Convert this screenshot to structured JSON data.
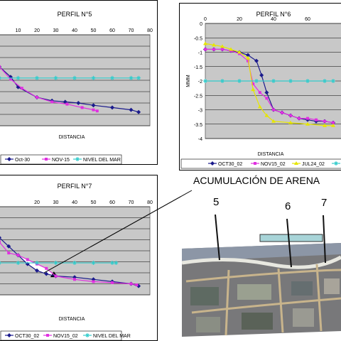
{
  "annotation": {
    "label": "ACUMULACIÓN DE ARENA"
  },
  "map": {
    "labels": [
      "5",
      "6",
      "7"
    ]
  },
  "chart_data": [
    {
      "type": "line",
      "title": "PERFIL N°5",
      "xlabel": "DISTANCIA",
      "ylabel": "",
      "xlim": [
        0,
        80
      ],
      "ylim": [
        -4,
        0
      ],
      "x_ticks": [
        "10",
        "20",
        "30",
        "40",
        "50",
        "60",
        "70",
        "80"
      ],
      "grid": true,
      "legend": "bottom",
      "series": [
        {
          "name": "Oct-30",
          "color": "#1a1a8c",
          "marker": "diamond",
          "x": [
            0,
            6,
            10,
            20,
            28,
            35,
            42,
            50,
            60,
            70,
            74
          ],
          "y": [
            -1.4,
            -1.85,
            -2.3,
            -2.75,
            -2.9,
            -2.95,
            -3.0,
            -3.1,
            -3.2,
            -3.3,
            -3.4
          ]
        },
        {
          "name": "NOV-15",
          "color": "#e030e0",
          "marker": "square",
          "x": [
            0,
            6,
            12,
            20,
            28,
            36,
            44,
            50,
            52
          ],
          "y": [
            -1.4,
            -1.95,
            -2.35,
            -2.75,
            -2.95,
            -3.05,
            -3.2,
            -3.3,
            -3.35
          ]
        },
        {
          "name": "NIVEL DEL MAR",
          "color": "#33cccc",
          "marker": "star",
          "x": [
            0,
            10,
            20,
            30,
            40,
            50,
            60,
            70,
            74
          ],
          "y": [
            -1.9,
            -1.9,
            -1.9,
            -1.9,
            -1.9,
            -1.9,
            -1.9,
            -1.9,
            -1.9
          ]
        }
      ]
    },
    {
      "type": "line",
      "title": "PERFIL N°6",
      "xlabel": "DISTANCIA",
      "ylabel": "MMM",
      "xlim": [
        0,
        80
      ],
      "ylim": [
        -4,
        0
      ],
      "x_ticks": [
        "0",
        "20",
        "40",
        "60"
      ],
      "y_ticks": [
        "0",
        "-0.5",
        "-1",
        "-1.5",
        "-2",
        "-2.5",
        "-3",
        "-3.5",
        "-4"
      ],
      "grid": true,
      "legend": "bottom",
      "series": [
        {
          "name": "OCT30_02",
          "color": "#1a1a8c",
          "marker": "diamond",
          "x": [
            0,
            5,
            10,
            15,
            20,
            25,
            30,
            33,
            36,
            40,
            45,
            50,
            55,
            60,
            65,
            70,
            75
          ],
          "y": [
            -0.9,
            -0.9,
            -0.9,
            -0.95,
            -1.0,
            -1.1,
            -1.3,
            -1.8,
            -2.4,
            -3.0,
            -3.1,
            -3.2,
            -3.3,
            -3.35,
            -3.4,
            -3.4,
            -3.45
          ]
        },
        {
          "name": "NOV15_02",
          "color": "#e030e0",
          "marker": "square",
          "x": [
            0,
            5,
            10,
            15,
            20,
            25,
            28,
            32,
            36,
            40,
            45,
            50,
            55,
            60,
            65,
            70,
            75
          ],
          "y": [
            -0.9,
            -0.9,
            -0.9,
            -0.95,
            -1.05,
            -1.3,
            -2.1,
            -2.4,
            -2.6,
            -3.0,
            -3.1,
            -3.2,
            -3.3,
            -3.3,
            -3.35,
            -3.4,
            -3.45
          ]
        },
        {
          "name": "JUL24_02",
          "color": "#e6e600",
          "marker": "triangle",
          "x": [
            0,
            5,
            10,
            15,
            20,
            25,
            28,
            32,
            36,
            40,
            50,
            60,
            70,
            75
          ],
          "y": [
            -0.7,
            -0.75,
            -0.8,
            -0.9,
            -1.0,
            -1.2,
            -2.3,
            -2.9,
            -3.2,
            -3.4,
            -3.45,
            -3.5,
            -3.55,
            -3.55
          ]
        },
        {
          "name": "",
          "color": "#33cccc",
          "marker": "star",
          "x": [
            0,
            10,
            20,
            30,
            40,
            50,
            60,
            70,
            75
          ],
          "y": [
            -2.0,
            -2.0,
            -2.0,
            -2.0,
            -2.0,
            -2.0,
            -2.0,
            -2.0,
            -2.0
          ]
        }
      ]
    },
    {
      "type": "line",
      "title": "PERFIL N°7",
      "xlabel": "DISTANCIA",
      "ylabel": "",
      "xlim": [
        0,
        80
      ],
      "ylim": [
        -4,
        0
      ],
      "x_ticks": [
        "20",
        "30",
        "40",
        "50",
        "60",
        "70",
        "80"
      ],
      "grid": true,
      "legend": "bottom",
      "series": [
        {
          "name": "OCT30_02",
          "color": "#1a1a8c",
          "marker": "diamond",
          "x": [
            0,
            5,
            10,
            15,
            20,
            25,
            30,
            40,
            50,
            60,
            70,
            74
          ],
          "y": [
            -1.4,
            -1.8,
            -2.2,
            -2.6,
            -2.9,
            -3.05,
            -3.15,
            -3.2,
            -3.3,
            -3.4,
            -3.5,
            -3.6
          ]
        },
        {
          "name": "NOV15_02",
          "color": "#e030e0",
          "marker": "square",
          "x": [
            0,
            5,
            10,
            15,
            20,
            25,
            30,
            40,
            50,
            60,
            70,
            73
          ],
          "y": [
            -1.6,
            -2.1,
            -2.2,
            -2.4,
            -2.6,
            -2.8,
            -3.15,
            -3.3,
            -3.4,
            -3.45,
            -3.5,
            -3.55
          ]
        },
        {
          "name": "NIVEL DEL MAR",
          "color": "#33cccc",
          "marker": "star",
          "x": [
            0,
            10,
            20,
            30,
            40,
            50,
            60,
            62
          ],
          "y": [
            -2.55,
            -2.55,
            -2.55,
            -2.55,
            -2.55,
            -2.55,
            -2.55,
            -2.55
          ]
        }
      ]
    }
  ]
}
